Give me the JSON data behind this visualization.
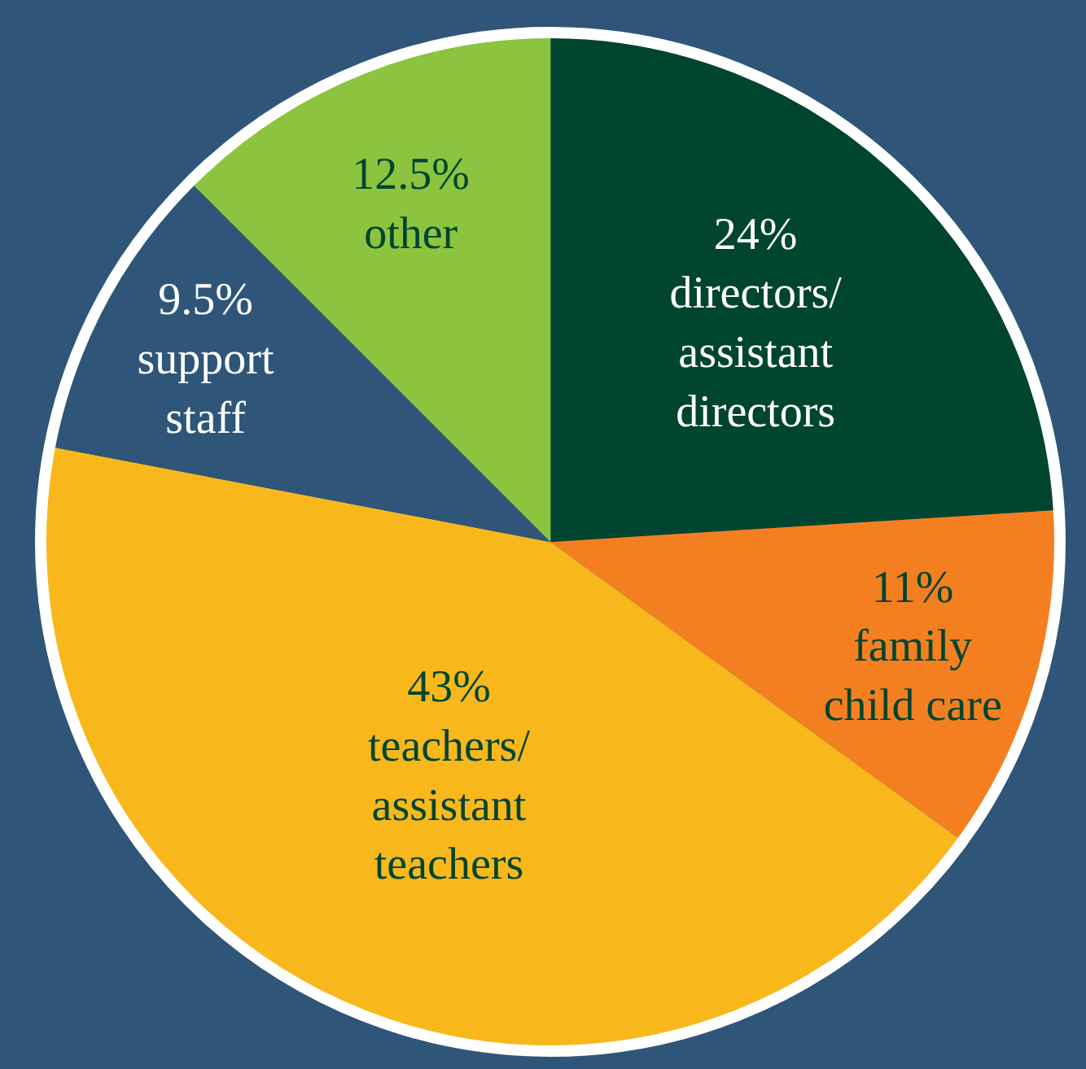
{
  "chart_data": {
    "type": "pie",
    "categories": [
      "directors/ assistant directors",
      "family child care",
      "teachers/ assistant teachers",
      "support staff",
      "other"
    ],
    "values": [
      24,
      11,
      43,
      9.5,
      12.5
    ],
    "value_labels": [
      "24%",
      "11%",
      "43%",
      "9.5%",
      "12.5%"
    ],
    "colors": [
      "#00452f",
      "#f47f20",
      "#f8b81c",
      "#2f5679",
      "#8cc43f"
    ],
    "legend": false
  }
}
